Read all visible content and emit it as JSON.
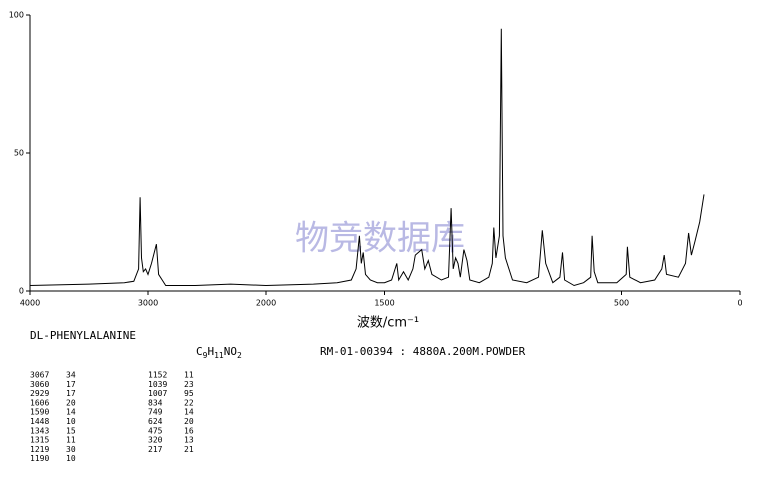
{
  "chart_data": {
    "type": "line",
    "x_label": "波数/cm⁻¹",
    "xlim": [
      4000,
      0
    ],
    "x_scale_change": 2000,
    "xticks": [
      4000,
      3000,
      2000,
      1500,
      500,
      0
    ],
    "ylim": [
      0,
      100
    ],
    "yticks": [
      0,
      50,
      100
    ],
    "color": "#000000",
    "x": [
      4000,
      3500,
      3200,
      3120,
      3080,
      3067,
      3055,
      3040,
      3020,
      3000,
      2970,
      2929,
      2910,
      2880,
      2850,
      2600,
      2300,
      2000,
      1800,
      1700,
      1640,
      1620,
      1606,
      1598,
      1590,
      1580,
      1560,
      1530,
      1500,
      1470,
      1448,
      1440,
      1420,
      1400,
      1380,
      1370,
      1343,
      1330,
      1315,
      1300,
      1260,
      1230,
      1219,
      1210,
      1200,
      1190,
      1180,
      1165,
      1152,
      1140,
      1100,
      1060,
      1045,
      1039,
      1030,
      1015,
      1007,
      1000,
      990,
      960,
      900,
      850,
      834,
      820,
      790,
      760,
      749,
      740,
      700,
      660,
      630,
      624,
      615,
      600,
      520,
      480,
      475,
      465,
      420,
      360,
      330,
      320,
      310,
      260,
      230,
      217,
      205,
      190,
      170,
      152
    ],
    "values": [
      2,
      2.5,
      3,
      3.5,
      8,
      34,
      12,
      7,
      8,
      6,
      10,
      17,
      6,
      4,
      2,
      2,
      2.5,
      2,
      2.5,
      3,
      4,
      8,
      20,
      10,
      14,
      6,
      4,
      3,
      3,
      4,
      10,
      4,
      7,
      4,
      8,
      13,
      15,
      8,
      11,
      6,
      4,
      5,
      30,
      8,
      12,
      10,
      5,
      15,
      11,
      4,
      3,
      5,
      10,
      23,
      12,
      20,
      95,
      20,
      12,
      4,
      3,
      5,
      22,
      10,
      3,
      5,
      14,
      4,
      2,
      3,
      5,
      20,
      7,
      3,
      3,
      6,
      16,
      5,
      3,
      4,
      8,
      13,
      6,
      5,
      10,
      21,
      13,
      18,
      25,
      35
    ]
  },
  "watermark": "物竞数据库",
  "sample": {
    "name": "DL-PHENYLALANINE",
    "formula": [
      "C",
      "9",
      "H",
      "11",
      "NO",
      "2"
    ],
    "reference": "RM-01-00394 : 4880A.200M.POWDER",
    "peaks": [
      [
        "3067",
        "34"
      ],
      [
        "3060",
        "17"
      ],
      [
        "2929",
        "17"
      ],
      [
        "1606",
        "20"
      ],
      [
        "1590",
        "14"
      ],
      [
        "1448",
        "10"
      ],
      [
        "1343",
        "15"
      ],
      [
        "1315",
        "11"
      ],
      [
        "1219",
        "30"
      ],
      [
        "1190",
        "10"
      ],
      [
        "1152",
        "11"
      ],
      [
        "1039",
        "23"
      ],
      [
        "1007",
        "95"
      ],
      [
        "834",
        "22"
      ],
      [
        "749",
        "14"
      ],
      [
        "624",
        "20"
      ],
      [
        "475",
        "16"
      ],
      [
        "320",
        "13"
      ],
      [
        "217",
        "21"
      ]
    ]
  }
}
